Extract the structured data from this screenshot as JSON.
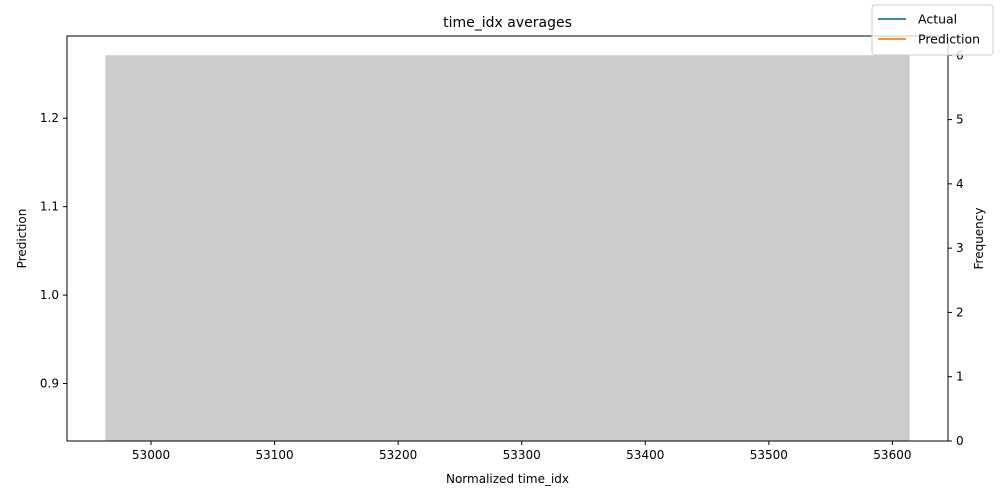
{
  "chart_data": {
    "type": "bar",
    "title": "time_idx averages",
    "xlabel": "Normalized time_idx",
    "ylabel": "Prediction",
    "y2label": "Frequency",
    "xlim": [
      52932,
      53645
    ],
    "ylim": [
      0.835,
      1.293
    ],
    "y2lim": [
      0,
      6.3
    ],
    "xticks": [
      53000,
      53100,
      53200,
      53300,
      53400,
      53500,
      53600
    ],
    "yticks": [
      0.9,
      1.0,
      1.1,
      1.2
    ],
    "y2ticks": [
      0,
      1,
      2,
      3,
      4,
      5,
      6
    ],
    "histogram": {
      "axis": "secondary",
      "color": "#cccccc",
      "bins": [
        {
          "x0": 52963,
          "x1": 53614,
          "count": 6
        }
      ]
    },
    "series": [
      {
        "name": "Actual",
        "color": "#1f77b4",
        "x": [],
        "y": []
      },
      {
        "name": "Prediction",
        "color": "#ff7f0e",
        "x": [],
        "y": []
      }
    ],
    "legend": "top-right",
    "grid": false
  }
}
